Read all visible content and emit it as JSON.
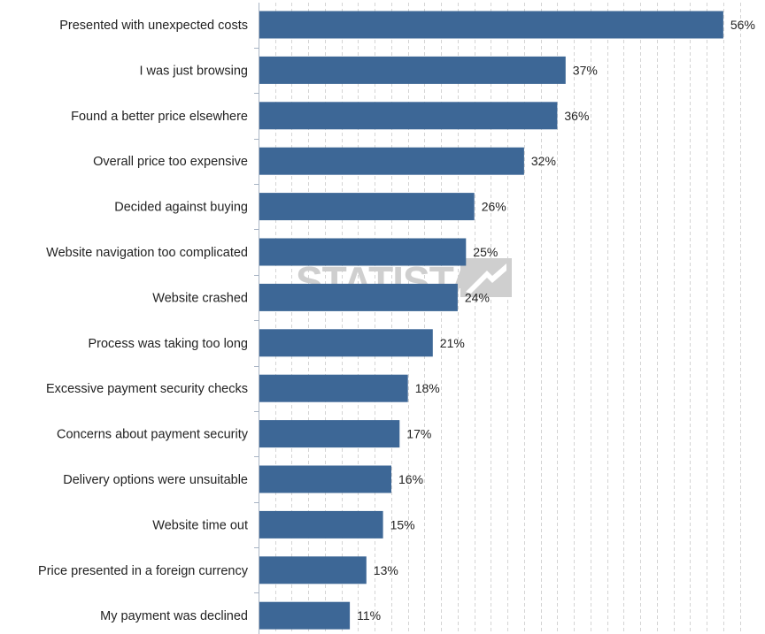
{
  "chart_data": {
    "type": "bar",
    "orientation": "horizontal",
    "title": "",
    "xlabel": "",
    "ylabel": "",
    "categories": [
      "Presented with unexpected costs",
      "I was just browsing",
      "Found a better price elsewhere",
      "Overall price too expensive",
      "Decided against buying",
      "Website navigation too complicated",
      "Website crashed",
      "Process was taking too long",
      "Excessive payment security checks",
      "Concerns about payment security",
      "Delivery options were unsuitable",
      "Website time out",
      "Price presented in a foreign currency",
      "My payment was declined"
    ],
    "values": [
      56,
      37,
      36,
      32,
      26,
      25,
      24,
      21,
      18,
      17,
      16,
      15,
      13,
      11
    ],
    "value_labels": [
      "56%",
      "37%",
      "36%",
      "32%",
      "26%",
      "25%",
      "24%",
      "21%",
      "18%",
      "17%",
      "16%",
      "15%",
      "13%",
      "11%"
    ],
    "xlim": [
      0,
      59
    ],
    "grid": true,
    "bar_color": "#3d6796",
    "legend": "none"
  },
  "watermark": {
    "text": "STATISTA",
    "color": "#cfcfcf"
  }
}
